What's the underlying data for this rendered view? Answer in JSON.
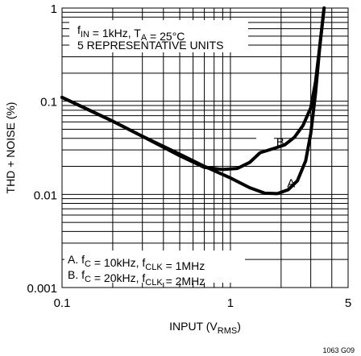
{
  "chart_data": {
    "type": "line",
    "title": "",
    "x_axis": {
      "label_main": "INPUT (V",
      "label_sub": "RMS",
      "label_end": ")",
      "scale": "log",
      "range": [
        0.1,
        5
      ],
      "tick_labels": [
        {
          "value": 0.1,
          "text": "0.1"
        },
        {
          "value": 1,
          "text": "1"
        },
        {
          "value": 5,
          "text": "5"
        }
      ]
    },
    "y_axis": {
      "label": "THD + NOISE (%)",
      "scale": "log",
      "range": [
        0.001,
        1
      ],
      "tick_labels": [
        {
          "value": 1,
          "text": "1"
        },
        {
          "value": 0.1,
          "text": "0.1"
        },
        {
          "value": 0.01,
          "text": "0.01"
        },
        {
          "value": 0.001,
          "text": "0.001"
        }
      ]
    },
    "grid": true,
    "series": [
      {
        "name": "A",
        "x": [
          0.1,
          0.15,
          0.2,
          0.3,
          0.5,
          0.7,
          1.0,
          1.3,
          1.6,
          1.9,
          2.2,
          2.5,
          2.8,
          3.0,
          3.2,
          3.4,
          3.6
        ],
        "y": [
          0.11,
          0.078,
          0.061,
          0.042,
          0.027,
          0.02,
          0.015,
          0.0118,
          0.0103,
          0.0102,
          0.0112,
          0.014,
          0.023,
          0.045,
          0.12,
          0.4,
          1.0
        ]
      },
      {
        "name": "B",
        "x": [
          0.1,
          0.15,
          0.2,
          0.3,
          0.5,
          0.7,
          0.9,
          1.1,
          1.3,
          1.5,
          1.8,
          2.1,
          2.4,
          2.7,
          3.0,
          3.2,
          3.4,
          3.6
        ],
        "y": [
          0.11,
          0.078,
          0.061,
          0.042,
          0.026,
          0.0195,
          0.0185,
          0.019,
          0.022,
          0.028,
          0.031,
          0.034,
          0.041,
          0.055,
          0.085,
          0.16,
          0.4,
          1.0
        ]
      }
    ],
    "series_labels": [
      {
        "text": "B",
        "x": 1.75,
        "y": 0.037
      },
      {
        "text": "A",
        "x": 1.9,
        "y": 0.0135
      }
    ],
    "annotations": {
      "conditions_line1": {
        "parts": [
          {
            "t": "f"
          },
          {
            "t": "IN",
            "sub": true
          },
          {
            "t": " = 1kHz, T"
          },
          {
            "t": "A",
            "sub": true
          },
          {
            "t": " = 25°C"
          }
        ]
      },
      "conditions_line2": {
        "parts": [
          {
            "t": "5 REPRESENTATIVE UNITS"
          }
        ]
      },
      "legend_a": {
        "parts": [
          {
            "t": "A. f"
          },
          {
            "t": "C",
            "sub": true
          },
          {
            "t": " = 10kHz, f"
          },
          {
            "t": "CLK",
            "sub": true
          },
          {
            "t": " = 1MHz"
          }
        ]
      },
      "legend_b": {
        "parts": [
          {
            "t": "B. f"
          },
          {
            "t": "C",
            "sub": true
          },
          {
            "t": " = 20kHz, f"
          },
          {
            "t": "CLK",
            "sub": true
          },
          {
            "t": " = 2MHz"
          }
        ]
      }
    },
    "figure_id": "1063 G09"
  }
}
